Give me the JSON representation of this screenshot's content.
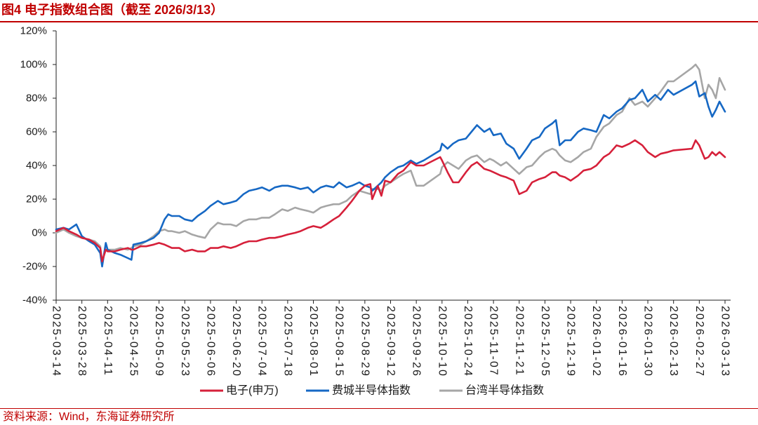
{
  "accent_color": "#c00000",
  "source": "资料来源：Wind，东海证券研究所",
  "chart_data": {
    "type": "line",
    "title": "图4 电子指数组合图（截至 2026/3/13）",
    "ylim": [
      -40,
      120
    ],
    "yticks": [
      120,
      100,
      80,
      60,
      40,
      20,
      0,
      -20,
      -40
    ],
    "ytick_labels": [
      "120%",
      "100%",
      "80%",
      "60%",
      "40%",
      "20%",
      "0%",
      "-20%",
      "-40%"
    ],
    "xticks": [
      "2025-03-14",
      "2025-03-28",
      "2025-04-11",
      "2025-04-25",
      "2025-05-09",
      "2025-05-23",
      "2025-06-06",
      "2025-06-20",
      "2025-07-04",
      "2025-07-18",
      "2025-08-01",
      "2025-08-15",
      "2025-08-29",
      "2025-09-12",
      "2025-09-26",
      "2025-10-10",
      "2025-10-24",
      "2025-11-07",
      "2025-11-21",
      "2025-12-05",
      "2025-12-19",
      "2026-01-02",
      "2026-01-16",
      "2026-01-30",
      "2026-02-13",
      "2026-02-27",
      "2026-03-13"
    ],
    "grid": false,
    "legend": "bottom",
    "x": [
      "2025-03-14",
      "2025-03-18",
      "2025-03-21",
      "2025-03-25",
      "2025-03-28",
      "2025-04-01",
      "2025-04-04",
      "2025-04-07",
      "2025-04-08",
      "2025-04-10",
      "2025-04-11",
      "2025-04-15",
      "2025-04-18",
      "2025-04-22",
      "2025-04-24",
      "2025-04-25",
      "2025-04-29",
      "2025-05-02",
      "2025-05-06",
      "2025-05-09",
      "2025-05-12",
      "2025-05-14",
      "2025-05-16",
      "2025-05-20",
      "2025-05-23",
      "2025-05-27",
      "2025-05-30",
      "2025-06-03",
      "2025-06-06",
      "2025-06-10",
      "2025-06-13",
      "2025-06-17",
      "2025-06-20",
      "2025-06-24",
      "2025-06-27",
      "2025-07-01",
      "2025-07-04",
      "2025-07-08",
      "2025-07-11",
      "2025-07-15",
      "2025-07-18",
      "2025-07-22",
      "2025-07-25",
      "2025-07-29",
      "2025-08-01",
      "2025-08-05",
      "2025-08-08",
      "2025-08-12",
      "2025-08-15",
      "2025-08-19",
      "2025-08-22",
      "2025-08-26",
      "2025-08-29",
      "2025-09-01",
      "2025-09-02",
      "2025-09-05",
      "2025-09-07",
      "2025-09-09",
      "2025-09-12",
      "2025-09-16",
      "2025-09-19",
      "2025-09-23",
      "2025-09-26",
      "2025-09-30",
      "2025-10-09",
      "2025-10-10",
      "2025-10-13",
      "2025-10-16",
      "2025-10-19",
      "2025-10-23",
      "2025-10-26",
      "2025-10-29",
      "2025-11-02",
      "2025-11-05",
      "2025-11-07",
      "2025-11-11",
      "2025-11-14",
      "2025-11-18",
      "2025-11-21",
      "2025-11-25",
      "2025-11-28",
      "2025-12-02",
      "2025-12-05",
      "2025-12-09",
      "2025-12-11",
      "2025-12-13",
      "2025-12-16",
      "2025-12-19",
      "2025-12-23",
      "2025-12-26",
      "2025-12-30",
      "2026-01-02",
      "2026-01-06",
      "2026-01-09",
      "2026-01-13",
      "2026-01-16",
      "2026-01-20",
      "2026-01-23",
      "2026-01-27",
      "2026-01-30",
      "2026-02-03",
      "2026-02-06",
      "2026-02-10",
      "2026-02-13",
      "2026-02-23",
      "2026-02-25",
      "2026-02-27",
      "2026-03-02",
      "2026-03-04",
      "2026-03-06",
      "2026-03-08",
      "2026-03-10",
      "2026-03-13"
    ],
    "series": [
      {
        "name": "电子(申万)",
        "color": "#d6203a",
        "values": [
          1,
          3,
          1,
          -1,
          -3,
          -4,
          -6,
          -9,
          -17,
          -10,
          -11,
          -11,
          -10,
          -9,
          -10,
          -10,
          -8,
          -8,
          -7,
          -6,
          -7,
          -8,
          -9,
          -9,
          -11,
          -10,
          -11,
          -11,
          -9,
          -9,
          -8,
          -9,
          -8,
          -6,
          -5,
          -5,
          -4,
          -3,
          -3,
          -2,
          -1,
          0,
          1,
          3,
          4,
          3,
          5,
          8,
          10,
          15,
          19,
          25,
          28,
          29,
          20,
          28,
          22,
          31,
          30,
          35,
          37,
          42,
          40,
          40,
          45,
          43,
          36,
          30,
          30,
          36,
          40,
          42,
          38,
          37,
          36,
          34,
          33,
          31,
          23,
          25,
          30,
          32,
          33,
          36,
          36,
          34,
          33,
          31,
          34,
          37,
          38,
          40,
          45,
          47,
          52,
          51,
          53,
          55,
          52,
          48,
          45,
          47,
          48,
          49,
          50,
          55,
          52,
          44,
          45,
          48,
          46,
          48,
          45
        ]
      },
      {
        "name": "费城半导体指数",
        "color": "#1668c4",
        "values": [
          2,
          3,
          2,
          5,
          -2,
          -5,
          -7,
          -12,
          -20,
          -6,
          -10,
          -12,
          -13,
          -15,
          -16,
          -7,
          -6,
          -5,
          -3,
          0,
          8,
          11,
          10,
          10,
          8,
          7,
          10,
          13,
          16,
          19,
          17,
          18,
          19,
          23,
          25,
          26,
          27,
          25,
          27,
          28,
          28,
          27,
          26,
          27,
          24,
          27,
          28,
          27,
          30,
          27,
          28,
          30,
          28,
          27,
          25,
          28,
          30,
          33,
          36,
          39,
          40,
          43,
          41,
          43,
          49,
          53,
          50,
          53,
          55,
          56,
          60,
          64,
          60,
          62,
          58,
          59,
          53,
          50,
          44,
          50,
          55,
          57,
          62,
          65,
          67,
          52,
          55,
          55,
          60,
          62,
          61,
          60,
          70,
          68,
          72,
          74,
          79,
          80,
          85,
          78,
          82,
          79,
          85,
          82,
          88,
          90,
          81,
          83,
          75,
          69,
          73,
          78,
          72
        ]
      },
      {
        "name": "台湾半导体指数",
        "color": "#a6a6a6",
        "values": [
          0,
          2,
          0,
          -2,
          -3,
          -4,
          -5,
          -8,
          -17,
          -10,
          -10,
          -10,
          -9,
          -10,
          -9,
          -8,
          -7,
          -5,
          -2,
          1,
          2,
          1,
          1,
          0,
          1,
          -1,
          -2,
          -3,
          2,
          6,
          5,
          5,
          4,
          7,
          8,
          8,
          9,
          9,
          11,
          14,
          13,
          15,
          14,
          13,
          12,
          15,
          16,
          17,
          17,
          19,
          22,
          25,
          24,
          23,
          26,
          26,
          25,
          28,
          30,
          33,
          35,
          37,
          28,
          28,
          35,
          39,
          42,
          40,
          38,
          43,
          45,
          46,
          42,
          44,
          43,
          40,
          42,
          38,
          35,
          39,
          40,
          45,
          48,
          50,
          49,
          46,
          43,
          42,
          45,
          48,
          50,
          57,
          63,
          65,
          70,
          72,
          80,
          76,
          78,
          75,
          80,
          84,
          90,
          90,
          98,
          100,
          97,
          80,
          88,
          85,
          80,
          92,
          85
        ]
      }
    ]
  }
}
